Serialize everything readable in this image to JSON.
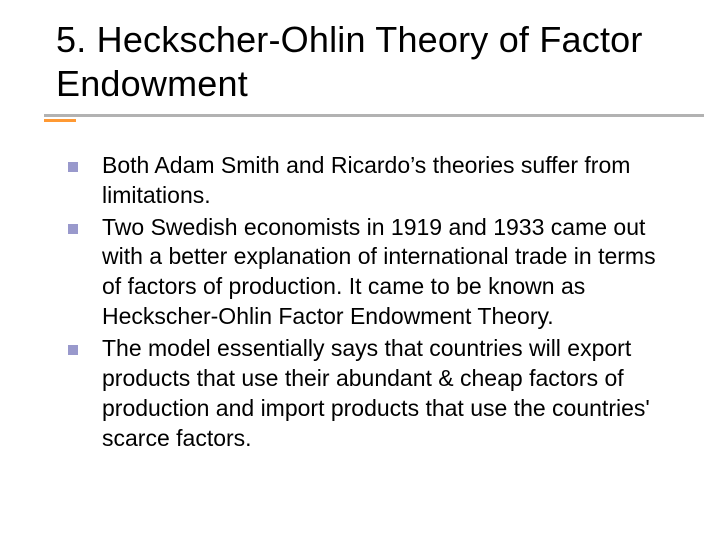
{
  "slide": {
    "title": "5. Heckscher-Ohlin Theory of Factor Endowment",
    "title_fontsize": 36,
    "title_color": "#000000",
    "underline_color": "#b2b2b2",
    "accent_color": "#ff9933",
    "bullet_marker_color": "#9999cc",
    "background_color": "#ffffff",
    "body_fontsize": 23,
    "body_color": "#000000",
    "bullets": [
      {
        "text": "Both Adam Smith and Ricardo’s theories suffer from limitations."
      },
      {
        "text": "Two Swedish economists in 1919 and 1933 came out with a better explanation of international trade in terms of factors of production. It came to be known as Heckscher-Ohlin Factor Endowment Theory."
      },
      {
        "text": "The model essentially says that countries will export products that use their abundant & cheap factors of production and import products that use the countries' scarce factors."
      }
    ]
  }
}
